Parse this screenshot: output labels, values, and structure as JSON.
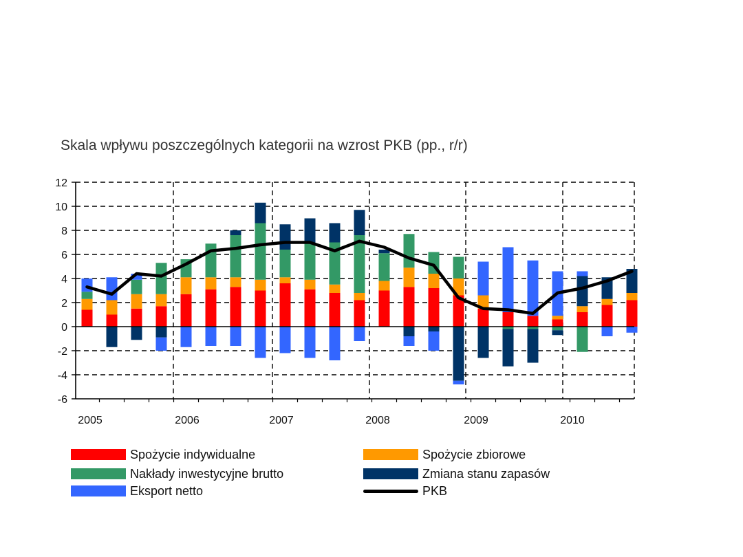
{
  "chart_data": {
    "type": "bar",
    "stacked": true,
    "title": "Skala wpływu poszczególnych kategorii na wzrost PKB (pp., r/r)",
    "xlabel": "",
    "ylabel": "",
    "ylim": [
      -6,
      12
    ],
    "yticks": [
      "12",
      "10",
      "8",
      "6",
      "4",
      "2",
      "0",
      "-2",
      "-4",
      "-6"
    ],
    "ytick_values": [
      12,
      10,
      8,
      6,
      4,
      2,
      0,
      -2,
      -4,
      -6
    ],
    "year_labels": [
      "2005",
      "2006",
      "2007",
      "2008",
      "2009",
      "2010"
    ],
    "categories": [
      "2005 Q1",
      "2005 Q2",
      "2005 Q3",
      "2005 Q4",
      "2006 Q1",
      "2006 Q2",
      "2006 Q3",
      "2006 Q4",
      "2007 Q1",
      "2007 Q2",
      "2007 Q3",
      "2007 Q4",
      "2008 Q1",
      "2008 Q2",
      "2008 Q3",
      "2008 Q4",
      "2009 Q1",
      "2009 Q2",
      "2009 Q3",
      "2009 Q4",
      "2010 Q1",
      "2010 Q2",
      "2010 Q3"
    ],
    "series": [
      {
        "name": "Spożycie indywidualne",
        "color": "#ff0000",
        "values": [
          1.4,
          1.0,
          1.5,
          1.7,
          2.7,
          3.1,
          3.3,
          3.0,
          3.6,
          3.1,
          2.8,
          2.2,
          3.0,
          3.3,
          3.2,
          2.6,
          1.5,
          1.2,
          0.9,
          0.6,
          1.2,
          1.8,
          2.2
        ]
      },
      {
        "name": "Spożycie zbiorowe",
        "color": "#ff9900",
        "values": [
          0.9,
          1.2,
          1.2,
          1.0,
          1.4,
          1.0,
          0.8,
          0.9,
          0.5,
          0.8,
          0.7,
          0.6,
          0.8,
          1.6,
          1.2,
          1.4,
          1.1,
          0.0,
          0.0,
          0.3,
          0.5,
          0.5,
          0.6
        ]
      },
      {
        "name": "Nakłady inwestycyjne brutto",
        "color": "#339966",
        "values": [
          0.6,
          0.0,
          1.2,
          2.6,
          1.5,
          2.8,
          3.5,
          4.7,
          2.3,
          3.0,
          3.5,
          4.8,
          2.3,
          2.8,
          1.8,
          1.8,
          0.0,
          -0.2,
          -0.2,
          -0.3,
          -2.1,
          0.0,
          0.0
        ]
      },
      {
        "name": "Zmiana stanu zapasów",
        "color": "#003366",
        "values": [
          0.0,
          -1.7,
          -1.1,
          -0.9,
          0.0,
          0.0,
          0.4,
          1.7,
          2.1,
          2.1,
          1.6,
          2.1,
          0.3,
          -0.8,
          -0.4,
          -4.5,
          -2.6,
          -3.1,
          -2.8,
          -0.4,
          2.5,
          1.8,
          2.0
        ]
      },
      {
        "name": "Eksport netto",
        "color": "#3366ff",
        "values": [
          1.1,
          1.9,
          0.5,
          -1.1,
          -1.7,
          -1.6,
          -1.6,
          -2.6,
          -2.2,
          -2.6,
          -2.8,
          -1.2,
          0.0,
          -0.8,
          -1.6,
          -0.3,
          2.8,
          5.4,
          4.6,
          3.7,
          0.4,
          -0.8,
          -0.5
        ]
      }
    ],
    "line": {
      "name": "PKB",
      "color": "#000000",
      "values": [
        3.3,
        2.7,
        4.4,
        4.2,
        5.2,
        6.3,
        6.5,
        6.8,
        7.0,
        7.0,
        6.3,
        7.1,
        6.6,
        5.7,
        5.1,
        2.4,
        1.5,
        1.4,
        1.1,
        2.8,
        3.2,
        3.8,
        4.6
      ]
    },
    "legend_position": "bottom"
  }
}
